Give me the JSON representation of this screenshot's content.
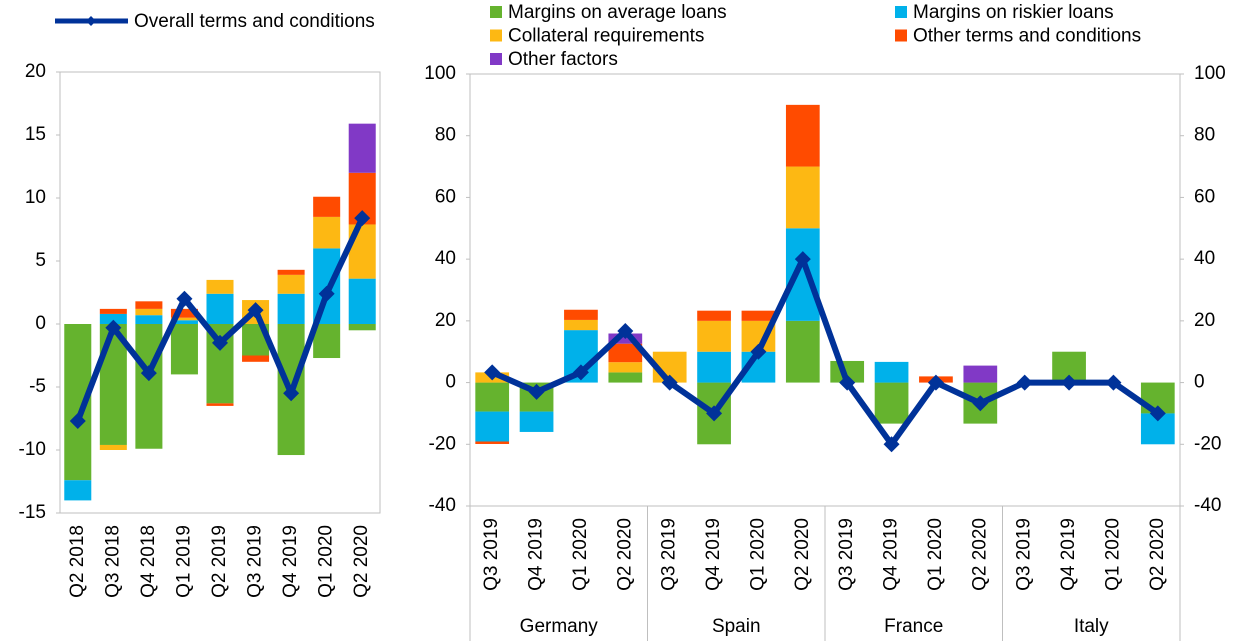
{
  "chart_data": [
    {
      "type": "bar",
      "categories": [
        "Q2 2018",
        "Q3 2018",
        "Q4 2018",
        "Q1 2019",
        "Q2 2019",
        "Q3 2019",
        "Q4 2019",
        "Q1 2020",
        "Q2 2020"
      ],
      "ylim": [
        -15,
        20
      ],
      "yticks": [
        -15,
        -10,
        -5,
        0,
        5,
        10,
        15,
        20
      ],
      "series": [
        {
          "name": "Margins on average loans",
          "color": "#65b32e",
          "values": [
            -12.4,
            -9.6,
            -9.9,
            -4,
            -6.3,
            -2.5,
            -10.4,
            -2.7,
            -0.5
          ]
        },
        {
          "name": "Margins on riskier loans",
          "color": "#00b1ea",
          "values": [
            -1.6,
            0.8,
            0.7,
            0.3,
            2.4,
            0,
            2.4,
            6,
            3.6
          ]
        },
        {
          "name": "Collateral requirements",
          "color": "#fdb813",
          "values": [
            0,
            -0.4,
            0.5,
            0.2,
            1.1,
            1.9,
            1.5,
            2.5,
            4.3
          ]
        },
        {
          "name": "Other terms and conditions",
          "color": "#ff4b00",
          "values": [
            0,
            0.4,
            0.6,
            0.7,
            -0.2,
            -0.5,
            0.4,
            1.6,
            4.1
          ]
        },
        {
          "name": "Other factors",
          "color": "#8139c6",
          "values": [
            0,
            0,
            0,
            0,
            0,
            0,
            0,
            0,
            3.9
          ]
        },
        {
          "name": "Overall terms and conditions",
          "color": "#003299",
          "line": true,
          "values": [
            -7.7,
            -0.3,
            -3.9,
            2,
            -1.5,
            1.1,
            -5.5,
            2.4,
            8.4
          ]
        }
      ]
    },
    {
      "type": "bar",
      "groups": [
        "Germany",
        "Spain",
        "France",
        "Italy"
      ],
      "categories": [
        "Q3 2019",
        "Q4 2019",
        "Q1 2020",
        "Q2 2020",
        "Q3 2019",
        "Q4 2019",
        "Q1 2020",
        "Q2 2020",
        "Q3 2019",
        "Q4 2019",
        "Q1 2020",
        "Q2 2020",
        "Q3 2019",
        "Q4 2019",
        "Q1 2020",
        "Q2 2020"
      ],
      "ylim": [
        -40,
        100
      ],
      "yticks": [
        -40,
        -20,
        0,
        20,
        40,
        60,
        80,
        100
      ],
      "y2lim": [
        -40,
        100
      ],
      "y2ticks": [
        -40,
        -20,
        0,
        20,
        40,
        60,
        80,
        100
      ],
      "series": [
        {
          "color": "#65b32e",
          "values": [
            -9.4,
            -9.4,
            0,
            3.3,
            0,
            -20,
            0,
            20,
            7,
            -13.3,
            0,
            -13.3,
            0,
            10,
            0,
            -10
          ]
        },
        {
          "color": "#00b1ea",
          "values": [
            -9.7,
            -6.6,
            17,
            0,
            0,
            10,
            10,
            30,
            0,
            6.7,
            0,
            0,
            0,
            0,
            0,
            -10
          ]
        },
        {
          "color": "#fdb813",
          "values": [
            3.3,
            0,
            3.3,
            3.3,
            10,
            10,
            10,
            20,
            0,
            0,
            0,
            0,
            0,
            0,
            0,
            0
          ]
        },
        {
          "color": "#ff4b00",
          "values": [
            -0.8,
            0,
            3.3,
            6,
            0,
            3.3,
            3.3,
            20,
            0,
            0,
            2,
            0,
            0,
            0,
            0,
            0
          ]
        },
        {
          "color": "#8139c6",
          "values": [
            0,
            0,
            0,
            3.3,
            0,
            0,
            0,
            0,
            0,
            0,
            0,
            5.5,
            0,
            0,
            0,
            0
          ]
        },
        {
          "color": "#003299",
          "line": true,
          "values": [
            3.3,
            -3,
            3.3,
            16.7,
            0,
            -10,
            10,
            40,
            0,
            -20,
            0,
            -6.7,
            0,
            0,
            0,
            -10
          ]
        }
      ]
    }
  ]
}
